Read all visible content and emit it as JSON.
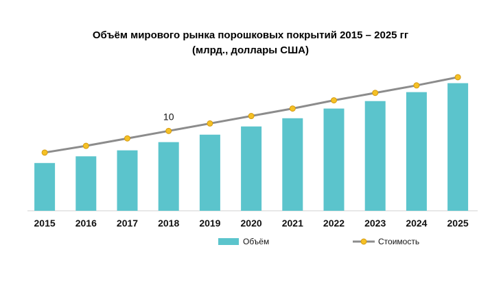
{
  "chart_data": {
    "type": "bar",
    "title": "Объём мирового рынка порошковых покрытий 2015 – 2025 гг",
    "subtitle": "(млрд., доллары США)",
    "xlabel": "",
    "ylabel": "",
    "categories": [
      "2015",
      "2016",
      "2017",
      "2018",
      "2019",
      "2020",
      "2021",
      "2022",
      "2023",
      "2024",
      "2025"
    ],
    "series": [
      {
        "name": "Объём",
        "kind": "bar",
        "color": "#5bc4cc",
        "values": [
          6.4,
          7.3,
          8.1,
          9.2,
          10.2,
          11.3,
          12.4,
          13.7,
          14.7,
          15.9,
          17.1
        ]
      },
      {
        "name": "Стоимость",
        "kind": "line",
        "color": "#8c8c8c",
        "marker_color": "#f5c125",
        "values": [
          7.8,
          8.7,
          9.7,
          10.7,
          11.7,
          12.7,
          13.7,
          14.8,
          15.8,
          16.8,
          17.9
        ]
      }
    ],
    "annotations": [
      {
        "category": "2018",
        "text": "10"
      }
    ],
    "ylim": [
      0,
      18.8
    ],
    "grid": false,
    "legend": "bottom-center"
  }
}
